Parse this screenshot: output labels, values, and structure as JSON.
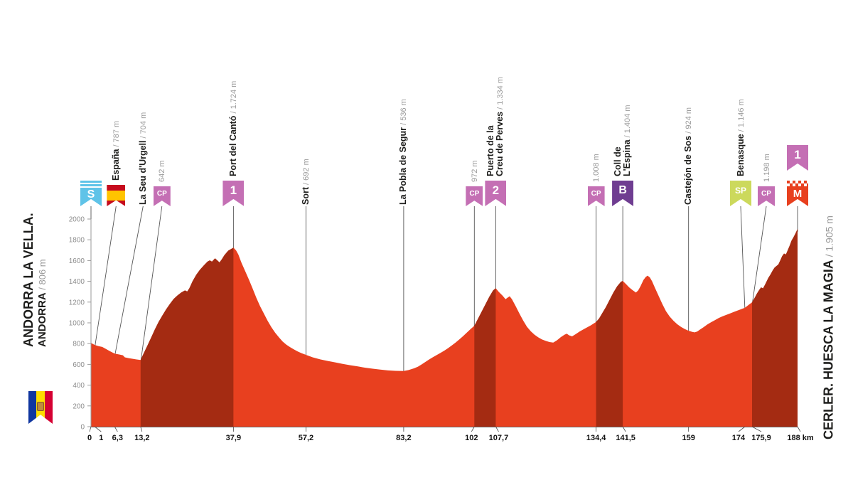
{
  "titles": {
    "left_line1": "ANDORRA LA VELLA.",
    "left_name": "ANDORRA",
    "left_elev_text": " / 806 m",
    "right_name": "CERLER. HUESCA LA MAGIA",
    "right_elev_text": " / 1.905 m"
  },
  "colors": {
    "profile": "#e8401f",
    "climb": "#a42b12",
    "banner_pink": "#c46fb4",
    "banner_blue": "#5fc3e8",
    "banner_purple": "#6f3d91",
    "banner_yellow": "#ccd95c",
    "banner_red": "#e8401f",
    "axis_gray": "#8c8c8c",
    "label_dark": "#1d1d1b",
    "label_gray": "#9b9b9b"
  },
  "axis": {
    "y_ticks": [
      0,
      200,
      400,
      600,
      800,
      1000,
      1200,
      1400,
      1600,
      1800,
      2000
    ],
    "x_labels": [
      {
        "km": 0,
        "label": "0",
        "dx": -2
      },
      {
        "km": 1,
        "label": "1",
        "dx": 9
      },
      {
        "km": 6.3,
        "label": "6,3",
        "dx": 4
      },
      {
        "km": 13.2,
        "label": "13,2",
        "dx": 2
      },
      {
        "km": 37.9,
        "label": "37,9",
        "dx": 0
      },
      {
        "km": 57.2,
        "label": "57,2",
        "dx": 0
      },
      {
        "km": 83.2,
        "label": "83,2",
        "dx": 0
      },
      {
        "km": 102,
        "label": "102",
        "dx": -4
      },
      {
        "km": 107.7,
        "label": "107,7",
        "dx": 4
      },
      {
        "km": 134.4,
        "label": "134,4",
        "dx": 0
      },
      {
        "km": 141.5,
        "label": "141,5",
        "dx": 4
      },
      {
        "km": 159,
        "label": "159",
        "dx": 0
      },
      {
        "km": 174,
        "label": "174",
        "dx": -9
      },
      {
        "km": 175.9,
        "label": "175,9",
        "dx": 13
      },
      {
        "km": 188,
        "label": "188 km",
        "dx": 4
      }
    ]
  },
  "markers": [
    {
      "km": 0,
      "icons": [
        {
          "type": "S",
          "text": "S"
        }
      ]
    },
    {
      "km": 1,
      "icon_dx": 30,
      "icons": [
        {
          "type": "flag-spain"
        }
      ],
      "label": {
        "lines": [
          "España"
        ],
        "elev": "787 m"
      }
    },
    {
      "km": 6.3,
      "label_dx": 40,
      "label": {
        "lines": [
          "La Seu d'Urgell"
        ],
        "elev": "704 m"
      }
    },
    {
      "km": 13.2,
      "icon_dx": 30,
      "icons": [
        {
          "type": "CP",
          "text": "CP"
        }
      ],
      "label": {
        "lines": [],
        "elev": "642 m"
      }
    },
    {
      "km": 37.9,
      "icons": [
        {
          "type": "cat",
          "text": "1"
        }
      ],
      "label": {
        "lines": [
          "Port del Cantó"
        ],
        "elev": "1.724 m"
      }
    },
    {
      "km": 57.2,
      "label": {
        "lines": [
          "Sort"
        ],
        "elev": "692 m"
      }
    },
    {
      "km": 83.2,
      "label": {
        "lines": [
          "La Pobla de Segur"
        ],
        "elev": "536 m"
      }
    },
    {
      "km": 102,
      "icons": [
        {
          "type": "CP",
          "text": "CP"
        }
      ],
      "label": {
        "lines": [],
        "elev": "972 m"
      }
    },
    {
      "km": 107.7,
      "icons": [
        {
          "type": "cat",
          "text": "2"
        }
      ],
      "label": {
        "lines": [
          "Puerto de la",
          "Creu de Perves"
        ],
        "elev": "1.334 m"
      }
    },
    {
      "km": 134.4,
      "icons": [
        {
          "type": "CP",
          "text": "CP"
        }
      ],
      "label": {
        "lines": [],
        "elev": "1.008 m"
      }
    },
    {
      "km": 141.5,
      "icons": [
        {
          "type": "B",
          "text": "B"
        }
      ],
      "label": {
        "lines": [
          "Coll de",
          "L'Espina"
        ],
        "elev": "1.404 m"
      }
    },
    {
      "km": 159,
      "label": {
        "lines": [
          "Castejón de Sos"
        ],
        "elev": "924 m"
      }
    },
    {
      "km": 174,
      "icon_dx": -6,
      "icons": [
        {
          "type": "SP",
          "text": "SP"
        }
      ],
      "label": {
        "lines": [
          "Benasque"
        ],
        "elev": "1.146 m"
      }
    },
    {
      "km": 175.9,
      "icon_dx": 20,
      "icons": [
        {
          "type": "CP",
          "text": "CP"
        }
      ],
      "label": {
        "lines": [],
        "elev": "1.198 m"
      }
    },
    {
      "km": 188,
      "icons": [
        {
          "type": "cat",
          "text": "1"
        },
        {
          "type": "M",
          "text": "M"
        }
      ]
    }
  ],
  "chart_data": {
    "type": "area",
    "title": "Stage elevation profile: Andorra la Vella (806 m) to Cerler. Huesca La Magia (1.905 m)",
    "xlabel": "km",
    "ylabel": "m",
    "x_max": 188,
    "y_max": 2000,
    "grid": false,
    "profile": [
      [
        0,
        806
      ],
      [
        1,
        787
      ],
      [
        2,
        776
      ],
      [
        3,
        768
      ],
      [
        4,
        748
      ],
      [
        5,
        728
      ],
      [
        6.3,
        704
      ],
      [
        7.5,
        695
      ],
      [
        8.5,
        688
      ],
      [
        9,
        668
      ],
      [
        10,
        660
      ],
      [
        11,
        654
      ],
      [
        12,
        648
      ],
      [
        13.2,
        642
      ],
      [
        14,
        705
      ],
      [
        15,
        780
      ],
      [
        16,
        858
      ],
      [
        17,
        938
      ],
      [
        18,
        1010
      ],
      [
        19,
        1072
      ],
      [
        20,
        1130
      ],
      [
        21,
        1182
      ],
      [
        22,
        1230
      ],
      [
        23,
        1264
      ],
      [
        24,
        1292
      ],
      [
        25,
        1312
      ],
      [
        25.6,
        1302
      ],
      [
        26.2,
        1335
      ],
      [
        27,
        1400
      ],
      [
        28,
        1462
      ],
      [
        29,
        1512
      ],
      [
        30,
        1552
      ],
      [
        31,
        1590
      ],
      [
        31.6,
        1602
      ],
      [
        32.2,
        1590
      ],
      [
        33,
        1622
      ],
      [
        33.6,
        1602
      ],
      [
        34.2,
        1582
      ],
      [
        34.8,
        1612
      ],
      [
        35.5,
        1652
      ],
      [
        36.5,
        1695
      ],
      [
        37.9,
        1724
      ],
      [
        38.6,
        1698
      ],
      [
        39.2,
        1658
      ],
      [
        40,
        1582
      ],
      [
        41,
        1500
      ],
      [
        42,
        1418
      ],
      [
        43,
        1330
      ],
      [
        44,
        1242
      ],
      [
        45,
        1160
      ],
      [
        46,
        1090
      ],
      [
        47,
        1020
      ],
      [
        48,
        958
      ],
      [
        49,
        905
      ],
      [
        50,
        860
      ],
      [
        51,
        820
      ],
      [
        52,
        790
      ],
      [
        53,
        765
      ],
      [
        54,
        744
      ],
      [
        55,
        724
      ],
      [
        56,
        708
      ],
      [
        57.2,
        692
      ],
      [
        59,
        668
      ],
      [
        61,
        648
      ],
      [
        63,
        633
      ],
      [
        65,
        619
      ],
      [
        67,
        605
      ],
      [
        69,
        592
      ],
      [
        71,
        580
      ],
      [
        73,
        568
      ],
      [
        75,
        558
      ],
      [
        77,
        549
      ],
      [
        79,
        542
      ],
      [
        81,
        538
      ],
      [
        83.2,
        536
      ],
      [
        84.5,
        545
      ],
      [
        86,
        562
      ],
      [
        87,
        578
      ],
      [
        88,
        600
      ],
      [
        89,
        624
      ],
      [
        90,
        648
      ],
      [
        91,
        670
      ],
      [
        92,
        690
      ],
      [
        93,
        710
      ],
      [
        94,
        732
      ],
      [
        95,
        756
      ],
      [
        96,
        782
      ],
      [
        97,
        810
      ],
      [
        98,
        840
      ],
      [
        99,
        872
      ],
      [
        100,
        906
      ],
      [
        101,
        940
      ],
      [
        102,
        972
      ],
      [
        103,
        1042
      ],
      [
        104,
        1112
      ],
      [
        105,
        1182
      ],
      [
        106,
        1252
      ],
      [
        107,
        1312
      ],
      [
        107.7,
        1334
      ],
      [
        108.5,
        1298
      ],
      [
        109.5,
        1262
      ],
      [
        110.3,
        1228
      ],
      [
        110.8,
        1242
      ],
      [
        111.4,
        1256
      ],
      [
        112,
        1228
      ],
      [
        113,
        1160
      ],
      [
        114,
        1090
      ],
      [
        115,
        1022
      ],
      [
        116,
        962
      ],
      [
        117,
        920
      ],
      [
        118,
        886
      ],
      [
        119,
        860
      ],
      [
        120,
        840
      ],
      [
        121,
        826
      ],
      [
        122,
        815
      ],
      [
        123,
        810
      ],
      [
        124,
        832
      ],
      [
        125,
        862
      ],
      [
        126,
        886
      ],
      [
        126.6,
        896
      ],
      [
        127.2,
        880
      ],
      [
        128,
        870
      ],
      [
        129,
        892
      ],
      [
        130,
        916
      ],
      [
        131,
        936
      ],
      [
        132,
        956
      ],
      [
        133,
        976
      ],
      [
        134.4,
        1008
      ],
      [
        135.2,
        1042
      ],
      [
        136,
        1092
      ],
      [
        137,
        1152
      ],
      [
        138,
        1222
      ],
      [
        139,
        1292
      ],
      [
        140,
        1352
      ],
      [
        141,
        1396
      ],
      [
        141.5,
        1404
      ],
      [
        142.4,
        1372
      ],
      [
        143.2,
        1342
      ],
      [
        144.2,
        1312
      ],
      [
        145,
        1292
      ],
      [
        145.6,
        1312
      ],
      [
        146.2,
        1352
      ],
      [
        147,
        1412
      ],
      [
        147.6,
        1442
      ],
      [
        148.1,
        1455
      ],
      [
        148.7,
        1438
      ],
      [
        149.3,
        1400
      ],
      [
        150,
        1342
      ],
      [
        151,
        1262
      ],
      [
        152,
        1182
      ],
      [
        153,
        1112
      ],
      [
        154,
        1060
      ],
      [
        155,
        1020
      ],
      [
        156,
        986
      ],
      [
        157,
        960
      ],
      [
        158,
        940
      ],
      [
        159,
        924
      ],
      [
        160,
        912
      ],
      [
        160.6,
        908
      ],
      [
        161.3,
        916
      ],
      [
        162,
        934
      ],
      [
        163,
        958
      ],
      [
        164,
        984
      ],
      [
        165,
        1006
      ],
      [
        166,
        1026
      ],
      [
        167,
        1046
      ],
      [
        168,
        1062
      ],
      [
        169,
        1076
      ],
      [
        170,
        1090
      ],
      [
        171,
        1104
      ],
      [
        172,
        1118
      ],
      [
        173,
        1132
      ],
      [
        174,
        1146
      ],
      [
        175,
        1174
      ],
      [
        175.9,
        1198
      ],
      [
        176.6,
        1242
      ],
      [
        177.2,
        1282
      ],
      [
        177.8,
        1318
      ],
      [
        178.3,
        1342
      ],
      [
        178.8,
        1332
      ],
      [
        179.4,
        1372
      ],
      [
        180.2,
        1432
      ],
      [
        180.8,
        1466
      ],
      [
        181.4,
        1506
      ],
      [
        181.9,
        1532
      ],
      [
        182.4,
        1548
      ],
      [
        182.9,
        1562
      ],
      [
        183.4,
        1602
      ],
      [
        183.9,
        1642
      ],
      [
        184.4,
        1668
      ],
      [
        184.9,
        1658
      ],
      [
        185.4,
        1702
      ],
      [
        185.9,
        1744
      ],
      [
        186.4,
        1792
      ],
      [
        186.9,
        1824
      ],
      [
        187.4,
        1858
      ],
      [
        188,
        1905
      ]
    ],
    "climbs": [
      {
        "from_km": 13.2,
        "to_km": 37.9,
        "name": "Port del Cantó",
        "summit_elev": "1.724 m"
      },
      {
        "from_km": 102,
        "to_km": 107.7,
        "name": "Puerto de la Creu de Perves",
        "summit_elev": "1.334 m"
      },
      {
        "from_km": 134.4,
        "to_km": 141.5,
        "name": "Coll de L'Espina",
        "summit_elev": "1.404 m"
      },
      {
        "from_km": 175.9,
        "to_km": 188,
        "name": "Cerler. Huesca La Magia",
        "summit_elev": "1.905 m"
      }
    ]
  }
}
